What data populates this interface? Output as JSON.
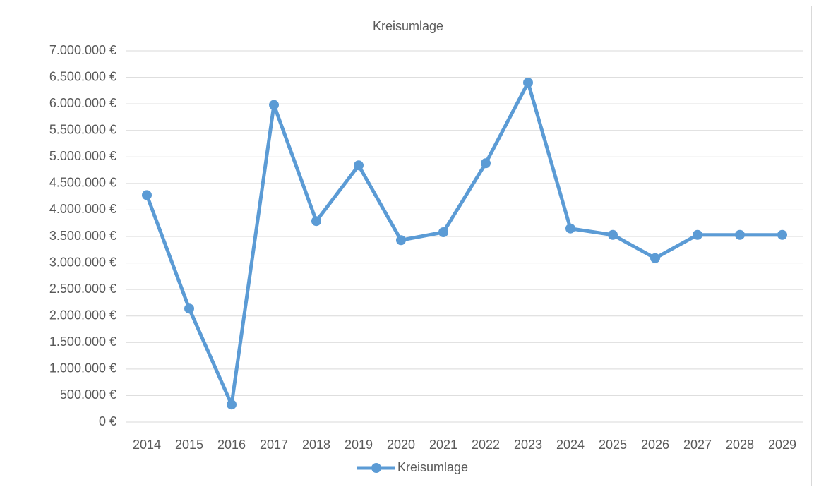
{
  "chart_data": {
    "type": "line",
    "title": "Kreisumlage",
    "categories": [
      "2014",
      "2015",
      "2016",
      "2017",
      "2018",
      "2019",
      "2020",
      "2021",
      "2022",
      "2023",
      "2024",
      "2025",
      "2026",
      "2027",
      "2028",
      "2029"
    ],
    "series": [
      {
        "name": "Kreisumlage",
        "color": "#5b9bd5",
        "values": [
          4280000,
          2140000,
          330000,
          5980000,
          3790000,
          4840000,
          3430000,
          3580000,
          4880000,
          6400000,
          3650000,
          3530000,
          3090000,
          3530000,
          3530000,
          3530000
        ]
      }
    ],
    "ylim": [
      0,
      7000000
    ],
    "yticks": [
      {
        "value": 0,
        "label": "0 €"
      },
      {
        "value": 500000,
        "label": "500.000 €"
      },
      {
        "value": 1000000,
        "label": "1.000.000 €"
      },
      {
        "value": 1500000,
        "label": "1.500.000 €"
      },
      {
        "value": 2000000,
        "label": "2.000.000 €"
      },
      {
        "value": 2500000,
        "label": "2.500.000 €"
      },
      {
        "value": 3000000,
        "label": "3.000.000 €"
      },
      {
        "value": 3500000,
        "label": "3.500.000 €"
      },
      {
        "value": 4000000,
        "label": "4.000.000 €"
      },
      {
        "value": 4500000,
        "label": "4.500.000 €"
      },
      {
        "value": 5000000,
        "label": "5.000.000 €"
      },
      {
        "value": 5500000,
        "label": "5.500.000 €"
      },
      {
        "value": 6000000,
        "label": "6.000.000 €"
      },
      {
        "value": 6500000,
        "label": "6.500.000 €"
      },
      {
        "value": 7000000,
        "label": "7.000.000 €"
      }
    ],
    "grid": true,
    "legend": "bottom"
  }
}
